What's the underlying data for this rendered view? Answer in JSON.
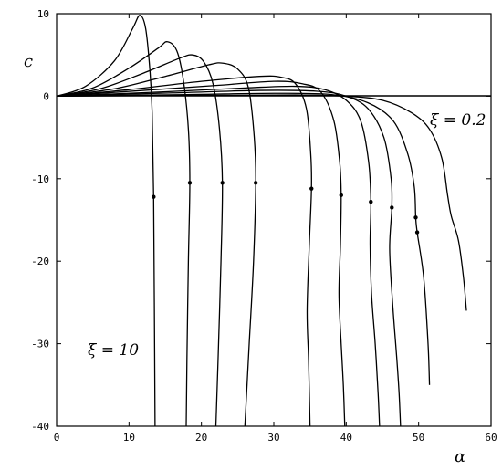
{
  "chart_data": {
    "type": "line",
    "xlabel": "α",
    "ylabel": "c",
    "xlim": [
      0,
      60
    ],
    "ylim": [
      -40,
      10
    ],
    "xticks": [
      0,
      10,
      20,
      30,
      40,
      50,
      60
    ],
    "yticks": [
      10,
      0,
      -10,
      -20,
      -30,
      -40
    ],
    "xtick_labels": [
      "0",
      "10",
      "20",
      "30",
      "40",
      "50",
      "60"
    ],
    "ytick_labels": [
      "10",
      "0",
      "-10",
      "-20",
      "-30",
      "-40"
    ],
    "grid": false,
    "annotations": [
      {
        "text": "ξ = 0.2",
        "x": 51.5,
        "y": -3.8
      },
      {
        "text": "ξ = 10",
        "x": 4.5,
        "y": -32.5
      }
    ],
    "series": [
      {
        "points": [
          [
            0,
            0
          ],
          [
            4,
            1.2
          ],
          [
            8,
            4.3
          ],
          [
            10.5,
            8.2
          ],
          [
            11.5,
            9.8
          ],
          [
            12.3,
            8.2
          ],
          [
            12.9,
            3
          ],
          [
            13.2,
            -2
          ],
          [
            13.4,
            -12.2
          ],
          [
            13.5,
            -25
          ],
          [
            13.6,
            -40
          ]
        ],
        "markers": [
          [
            13.4,
            -12.2
          ]
        ]
      },
      {
        "points": [
          [
            0,
            0
          ],
          [
            5,
            1
          ],
          [
            10,
            3.4
          ],
          [
            14,
            5.8
          ],
          [
            15.3,
            6.6
          ],
          [
            16.6,
            5.5
          ],
          [
            17.5,
            2
          ],
          [
            18.2,
            -4
          ],
          [
            18.4,
            -10.5
          ],
          [
            18.2,
            -20
          ],
          [
            18,
            -32
          ],
          [
            17.9,
            -40
          ]
        ],
        "markers": [
          [
            18.4,
            -10.5
          ]
        ]
      },
      {
        "points": [
          [
            0,
            0
          ],
          [
            6,
            0.9
          ],
          [
            12,
            2.8
          ],
          [
            17,
            4.6
          ],
          [
            18.8,
            5.0
          ],
          [
            20.3,
            4.2
          ],
          [
            21.6,
            1.5
          ],
          [
            22.5,
            -4
          ],
          [
            22.9,
            -10.5
          ],
          [
            22.7,
            -20
          ],
          [
            22.3,
            -32
          ],
          [
            22,
            -40
          ]
        ],
        "markers": [
          [
            22.9,
            -10.5
          ]
        ]
      },
      {
        "points": [
          [
            0,
            0
          ],
          [
            8,
            0.9
          ],
          [
            15,
            2.4
          ],
          [
            21,
            3.8
          ],
          [
            23,
            4.0
          ],
          [
            25,
            3.3
          ],
          [
            26.5,
            1
          ],
          [
            27.3,
            -5
          ],
          [
            27.5,
            -10.5
          ],
          [
            27.2,
            -20
          ],
          [
            26.6,
            -30
          ],
          [
            26.3,
            -35
          ],
          [
            26,
            -40
          ]
        ],
        "markers": [
          [
            27.5,
            -10.5
          ]
        ]
      },
      {
        "points": [
          [
            0,
            0
          ],
          [
            10,
            0.8
          ],
          [
            20,
            1.8
          ],
          [
            28,
            2.4
          ],
          [
            31,
            2.3
          ],
          [
            33,
            1.5
          ],
          [
            34.5,
            -1.5
          ],
          [
            35.1,
            -7
          ],
          [
            35.2,
            -11.2
          ],
          [
            34.9,
            -18
          ],
          [
            34.6,
            -26
          ],
          [
            34.8,
            -32
          ],
          [
            35,
            -40
          ]
        ],
        "markers": [
          [
            35.2,
            -11.2
          ]
        ]
      },
      {
        "points": [
          [
            0,
            0
          ],
          [
            12,
            0.7
          ],
          [
            22,
            1.3
          ],
          [
            30,
            1.8
          ],
          [
            34,
            1.5
          ],
          [
            36.5,
            0.5
          ],
          [
            38.3,
            -3
          ],
          [
            39.1,
            -8
          ],
          [
            39.3,
            -12
          ],
          [
            39.2,
            -18
          ],
          [
            39,
            -24
          ],
          [
            39.3,
            -30
          ],
          [
            39.6,
            -35
          ],
          [
            39.8,
            -40
          ]
        ],
        "markers": [
          [
            39.3,
            -12
          ]
        ]
      },
      {
        "points": [
          [
            0,
            0
          ],
          [
            14,
            0.5
          ],
          [
            26,
            1.0
          ],
          [
            33,
            1.2
          ],
          [
            37,
            0.8
          ],
          [
            40,
            -0.5
          ],
          [
            42,
            -3
          ],
          [
            43.1,
            -8
          ],
          [
            43.4,
            -12.8
          ],
          [
            43.3,
            -18
          ],
          [
            43.5,
            -24
          ],
          [
            44,
            -30
          ],
          [
            44.4,
            -36
          ],
          [
            44.6,
            -40
          ]
        ],
        "markers": [
          [
            43.4,
            -12.8
          ]
        ]
      },
      {
        "points": [
          [
            0,
            0
          ],
          [
            16,
            0.4
          ],
          [
            28,
            0.7
          ],
          [
            36,
            0.6
          ],
          [
            40,
            0
          ],
          [
            43,
            -1.5
          ],
          [
            45.2,
            -5
          ],
          [
            46.2,
            -10
          ],
          [
            46.3,
            -13.5
          ],
          [
            46,
            -18.5
          ],
          [
            46.4,
            -25
          ],
          [
            47,
            -32
          ],
          [
            47.3,
            -36
          ],
          [
            47.5,
            -40
          ]
        ],
        "markers": [
          [
            46.3,
            -13.5
          ]
        ]
      },
      {
        "points": [
          [
            0,
            0
          ],
          [
            18,
            0.2
          ],
          [
            30,
            0.35
          ],
          [
            38,
            0.2
          ],
          [
            43,
            -0.8
          ],
          [
            46.5,
            -3
          ],
          [
            48.5,
            -7
          ],
          [
            49.4,
            -11
          ],
          [
            49.6,
            -14.7
          ],
          [
            49.8,
            -16.5
          ],
          [
            50.7,
            -22
          ],
          [
            51.3,
            -30
          ],
          [
            51.5,
            -35
          ]
        ],
        "markers": [
          [
            49.6,
            -14.7
          ],
          [
            49.8,
            -16.5
          ]
        ]
      },
      {
        "points": [
          [
            0,
            0
          ],
          [
            20,
            0.1
          ],
          [
            33,
            0.15
          ],
          [
            40,
            0
          ],
          [
            45,
            -0.5
          ],
          [
            49,
            -2
          ],
          [
            51.5,
            -4
          ],
          [
            53.2,
            -7.5
          ],
          [
            54,
            -12
          ],
          [
            54.5,
            -14.5
          ],
          [
            55.5,
            -17.5
          ],
          [
            56.2,
            -22
          ],
          [
            56.6,
            -26
          ]
        ],
        "markers": []
      }
    ]
  }
}
